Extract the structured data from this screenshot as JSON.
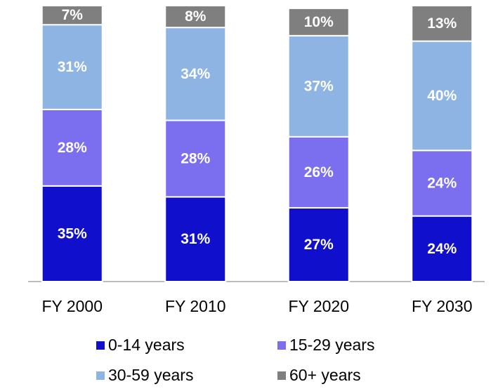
{
  "chart_data": {
    "type": "stacked_bar",
    "categories": [
      "FY 2000",
      "FY 2010",
      "FY 2020",
      "FY 2030"
    ],
    "series": [
      {
        "name": "0-14 years",
        "color": "#1010cc",
        "values": [
          35,
          31,
          27,
          24
        ],
        "value_labels": [
          "35%",
          "31%",
          "27%",
          "24%"
        ]
      },
      {
        "name": "15-29 years",
        "color": "#7b6ff0",
        "values": [
          28,
          28,
          26,
          24
        ],
        "value_labels": [
          "28%",
          "28%",
          "26%",
          "24%"
        ]
      },
      {
        "name": "30-59 years",
        "color": "#8db4e2",
        "values": [
          31,
          34,
          37,
          40
        ],
        "value_labels": [
          "31%",
          "34%",
          "37%",
          "40%"
        ]
      },
      {
        "name": "60+ years",
        "color": "#7f7f7f",
        "values": [
          7,
          8,
          10,
          13
        ],
        "value_labels": [
          "7%",
          "8%",
          "10%",
          "13%"
        ]
      }
    ],
    "ylim": [
      0,
      101
    ]
  }
}
